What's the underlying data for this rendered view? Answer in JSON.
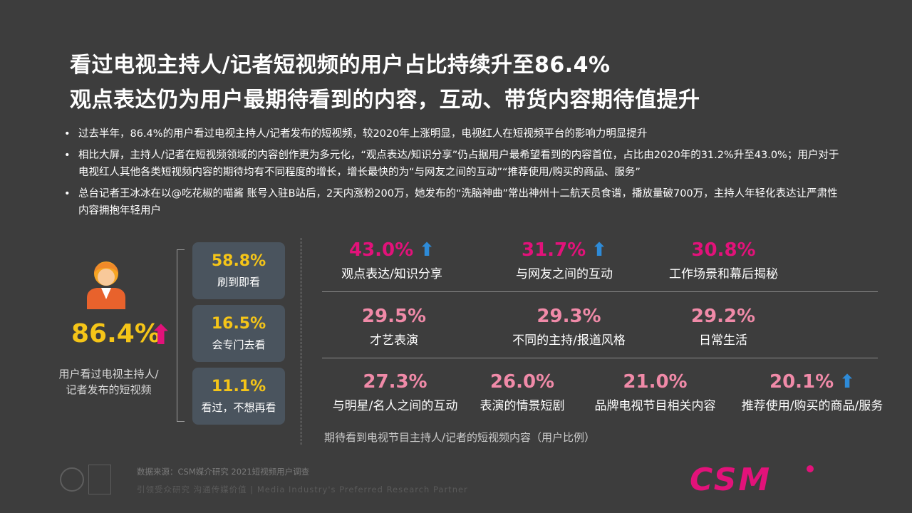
{
  "title_line1": "看过电视主持人/记者短视频的用户占比持续升至86.4%",
  "title_line2": "观点表达仍为用户最期待看到的内容，互动、带货内容期待值提升",
  "bullets": [
    "过去半年，86.4%的用户看过电视主持人/记者发布的短视频，较2020年上涨明显，电视红人在短视频平台的影响力明显提升",
    "相比大屏，主持人/记者在短视频领域的内容创作更为多元化，“观点表达/知识分享”仍占据用户最希望看到的内容首位，占比由2020年的31.2%升至43.0%；用户对于电视红人其他各类短视频内容的期待均有不同程度的增长，增长最快的为“与网友之间的互动”“推荐使用/购买的商品、服务”",
    "总台记者王冰冰在以@吃花椒的喵酱 账号入驻B站后，2天内涨粉200万，她发布的“洗脑神曲”常出神州十二航天员食谱，播放量破700万，主持人年轻化表达让严肃性内容拥抱年轻用户"
  ],
  "bullet_marker": "•",
  "left_panel": {
    "icon": "user-icon",
    "value": "86.4%",
    "arrow": "⬆",
    "caption_line1": "用户看过电视主持人/",
    "caption_line2": "记者发布的短视频"
  },
  "stats": [
    {
      "value": "58.8%",
      "label": "刷到即看"
    },
    {
      "value": "16.5%",
      "label": "会专门去看"
    },
    {
      "value": "11.1%",
      "label": "看过，不想再看"
    }
  ],
  "row1": [
    {
      "value": "43.0%",
      "label": "观点表达/知识分享",
      "arrow": "⬆"
    },
    {
      "value": "31.7%",
      "label": "与网友之间的互动",
      "arrow": "⬆"
    },
    {
      "value": "30.8%",
      "label": "工作场景和幕后揭秘"
    }
  ],
  "row2": [
    {
      "value": "29.5%",
      "label": "才艺表演"
    },
    {
      "value": "29.3%",
      "label": "不同的主持/报道风格"
    },
    {
      "value": "29.2%",
      "label": "日常生活"
    }
  ],
  "row3": [
    {
      "value": "27.3%",
      "label": "与明星/名人之间的互动"
    },
    {
      "value": "26.0%",
      "label": "表演的情景短剧"
    },
    {
      "value": "21.0%",
      "label": "品牌电视节目相关内容"
    },
    {
      "value": "20.1%",
      "label": "推荐使用/购买的商品/服务",
      "arrow": "⬆"
    }
  ],
  "chart_caption": "期待看到电视节目主持人/记者的短视频内容（用户比例）",
  "footer": {
    "source": "数据来源：CSM媒介研究 2021短视频用户调查",
    "slogan": "引领受众研究 沟通传媒价值 | Media Industry's Preferred Research Partner",
    "logo": "CSM"
  },
  "colors": {
    "background": "#3d3d3d",
    "accent_yellow": "#f5c518",
    "accent_magenta": "#e2127a",
    "accent_pink": "#f08aa8",
    "arrow_blue": "#2e8bd8",
    "stat_box": "#4a545e"
  }
}
